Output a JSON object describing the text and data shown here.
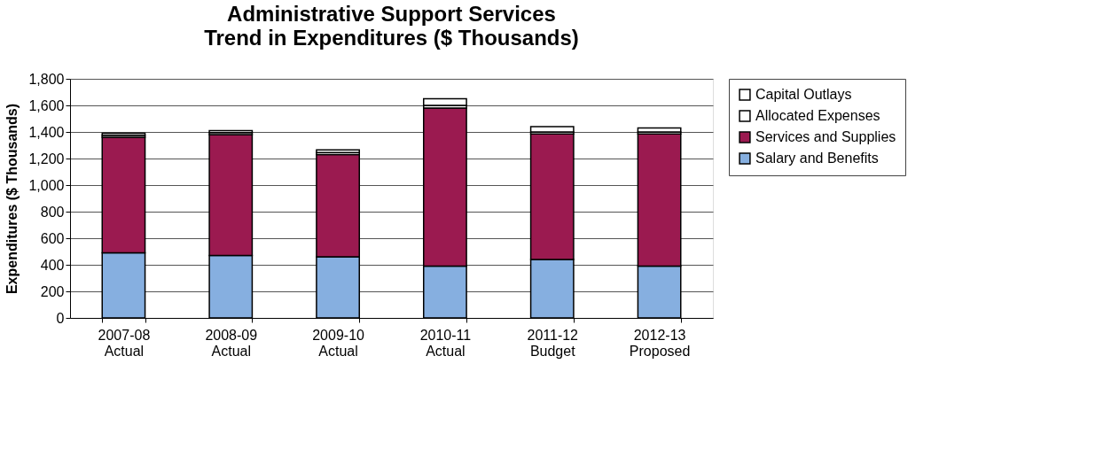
{
  "chart_data": {
    "type": "bar",
    "title": "Administrative Support Services",
    "subtitle": "Trend in Expenditures ($ Thousands)",
    "ylabel": "Expenditures ($ Thousands)",
    "categories": [
      "2007-08\nActual",
      "2008-09\nActual",
      "2009-10\nActual",
      "2010-11\nActual",
      "2011-12\nBudget",
      "2012-13\nProposed"
    ],
    "stacked": true,
    "series": [
      {
        "name": "Salary and Benefits",
        "color": "#86afe0",
        "values": [
          490,
          470,
          460,
          390,
          440,
          390
        ]
      },
      {
        "name": "Services and Supplies",
        "color": "#9b1a50",
        "values": [
          870,
          910,
          770,
          1190,
          945,
          995
        ]
      },
      {
        "name": "Allocated Expenses",
        "color": "#ffffff",
        "values": [
          15,
          15,
          15,
          20,
          15,
          15
        ]
      },
      {
        "name": "Capital Outlays",
        "color": "#ffffff",
        "values": [
          15,
          15,
          20,
          50,
          40,
          30
        ]
      }
    ],
    "ylim": [
      0,
      1800
    ],
    "yticks": [
      {
        "value": 0,
        "label": "0"
      },
      {
        "value": 200,
        "label": "200"
      },
      {
        "value": 400,
        "label": "400"
      },
      {
        "value": 600,
        "label": "600"
      },
      {
        "value": 800,
        "label": "800"
      },
      {
        "value": 1000,
        "label": "1,000"
      },
      {
        "value": 1200,
        "label": "1,200"
      },
      {
        "value": 1400,
        "label": "1,400"
      },
      {
        "value": 1600,
        "label": "1,600"
      },
      {
        "value": 1800,
        "label": "1,800"
      }
    ],
    "grid": "y",
    "legend": "right"
  }
}
